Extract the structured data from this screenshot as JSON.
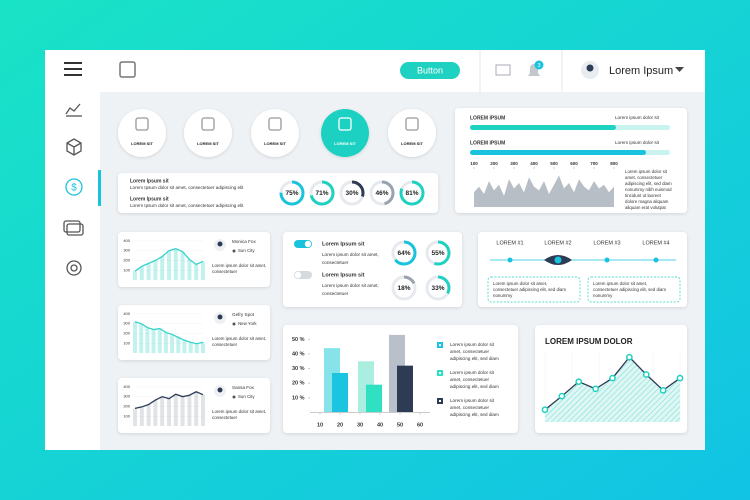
{
  "topbar": {
    "button": "Button",
    "badge": "3",
    "user": "Lorem Ipsum"
  },
  "icon_tiles": {
    "labels": [
      "LOREM SIT",
      "LOREM SIT",
      "LOREM SIT",
      "LOREM SIT",
      "LOREM SIT"
    ],
    "active": 3
  },
  "summary": {
    "lines": [
      {
        "title": "Lorem Ipsum sit",
        "text": "Lorem Ipsum dolor sit amet, consectetuer adipiscing elit"
      },
      {
        "title": "Lorem Ipsum sit",
        "text": "Lorem Ipsum dolor sit amet, consectetuer adipiscing elit"
      }
    ],
    "donuts": [
      {
        "value": 75,
        "label": "75%"
      },
      {
        "value": 71,
        "label": "71%"
      },
      {
        "value": 30,
        "label": "30%"
      },
      {
        "value": 46,
        "label": "46%"
      },
      {
        "value": 81,
        "label": "81%"
      }
    ]
  },
  "progress_panel": {
    "bars": [
      {
        "title": "LOREM IPSUM",
        "caption": "Lorem ipsum dolor sit",
        "value": 73
      },
      {
        "title": "LOREM IPSUM",
        "caption": "Lorem ipsum dolor sit",
        "value": 88
      }
    ],
    "chart": {
      "type": "area",
      "color": "#b8bec6",
      "xlim": [
        80,
        820
      ],
      "ylim": [
        0,
        100
      ],
      "xticks": [
        100,
        200,
        300,
        400,
        500,
        600,
        700,
        800
      ],
      "x": [
        100,
        125,
        150,
        175,
        200,
        225,
        250,
        275,
        300,
        325,
        350,
        375,
        400,
        425,
        450,
        475,
        500,
        525,
        550,
        575,
        600,
        625,
        650,
        675,
        700,
        725,
        750,
        775,
        800
      ],
      "values": [
        40,
        55,
        35,
        70,
        45,
        60,
        30,
        75,
        50,
        65,
        40,
        80,
        55,
        45,
        70,
        35,
        60,
        85,
        50,
        65,
        40,
        75,
        55,
        45,
        70,
        50,
        60,
        40,
        55
      ]
    },
    "text": [
      "Lorem ipsum dolor sit",
      "amet, consectetuer",
      "adipiscing elit, sed diam",
      "nonummy nibh euismod",
      "tincidunt ut laoreet",
      "dolore magna aliquam",
      "aliquam erat volutpat"
    ]
  },
  "people": [
    {
      "name": "Monica Fox",
      "location": "Sun City",
      "text": [
        "Lorem ipsum dolor sit amet,",
        "consectetuer"
      ],
      "chart": {
        "type": "area",
        "color": "#35d3c8",
        "ylim": [
          0,
          450
        ],
        "yticks": [
          100,
          200,
          300,
          400
        ],
        "values": [
          90,
          140,
          170,
          200,
          240,
          300,
          320,
          290,
          210,
          160,
          190
        ]
      }
    },
    {
      "name": "Gefry Spot",
      "location": "New York",
      "text": [
        "Lorem ipsum dolor sit amet,",
        "consectetuer"
      ],
      "chart": {
        "type": "area",
        "color": "#35d3c8",
        "ylim": [
          0,
          450
        ],
        "yticks": [
          100,
          200,
          300,
          400
        ],
        "values": [
          320,
          300,
          260,
          240,
          250,
          210,
          190,
          160,
          130,
          110,
          95,
          110
        ]
      }
    },
    {
      "name": "Sansa Fox",
      "location": "Sun City",
      "text": [
        "Lorem ipsum dolor sit amet,",
        "consectetuer"
      ],
      "chart": {
        "type": "area",
        "color": "#9aa3ad",
        "ylim": [
          0,
          450
        ],
        "yticks": [
          100,
          200,
          300,
          400
        ],
        "values": [
          180,
          195,
          220,
          265,
          300,
          280,
          325,
          300,
          315,
          350,
          320
        ]
      }
    }
  ],
  "toggles": {
    "items": [
      {
        "on": true,
        "title": "Lorem Ipsum sit",
        "text": [
          "Lorem ipsum dolor sit amet,",
          "consectetuer"
        ]
      },
      {
        "on": false,
        "title": "Lorem Ipsum sit",
        "text": [
          "Lorem ipsum dolor sit amet,",
          "consectetuer"
        ]
      }
    ],
    "donuts": [
      {
        "value": 64,
        "label": "64%"
      },
      {
        "value": 55,
        "label": "55%"
      },
      {
        "value": 18,
        "label": "18%"
      },
      {
        "value": 33,
        "label": "33%"
      }
    ]
  },
  "steps": {
    "labels": [
      "LOREM #1",
      "LOREM #2",
      "LOREM #3",
      "LOREM #4"
    ],
    "active": 1,
    "boxes": [
      [
        "Lorem ipsum dolor sit amet,",
        "consectetuer adipiscing elit, sed diam",
        "nonummy"
      ],
      [
        "Lorem ipsum dolor sit amet,",
        "consectetuer adipiscing elit, sed diam",
        "nonummy"
      ]
    ]
  },
  "bar_chart": {
    "type": "bar",
    "xlim": [
      5,
      65
    ],
    "ylim": [
      0,
      55
    ],
    "xticks": [
      10,
      20,
      30,
      40,
      50,
      60
    ],
    "yticks": [
      {
        "value": 10,
        "label": "10 %"
      },
      {
        "value": 20,
        "label": "20 %"
      },
      {
        "value": 30,
        "label": "30 %"
      },
      {
        "value": 40,
        "label": "40 %"
      },
      {
        "value": 50,
        "label": "50 %"
      }
    ],
    "series": [
      {
        "x": [
          16,
          33,
          48.5
        ],
        "values": [
          44,
          35,
          53
        ],
        "colors": [
          "#86e3ea",
          "#a9eedf",
          "#b9c0ca"
        ]
      },
      {
        "x": [
          20,
          37,
          52.5
        ],
        "values": [
          27,
          19,
          32
        ],
        "colors": [
          "#1cc4e0",
          "#2fe0c2",
          "#2d3b55"
        ]
      }
    ],
    "legend": [
      {
        "color": "#1cc4e0",
        "text": [
          "Lorem ipsum dolor sit",
          "amet, consectetuer",
          "adipiscing elit, sed diam"
        ]
      },
      {
        "color": "#2fe0c2",
        "text": [
          "Lorem ipsum dolor sit",
          "amet, consectetuer",
          "adipiscing elit, sed diam"
        ]
      },
      {
        "color": "#2d3b55",
        "text": [
          "Lorem ipsum dolor sit",
          "amet, consectetuer",
          "adipiscing elit, sed diam"
        ]
      }
    ]
  },
  "line_chart": {
    "type": "line",
    "title": "LOREM IPSUM DOLOR",
    "color": "#2d3b55",
    "ylim": [
      0,
      100
    ],
    "values": [
      17,
      36,
      56,
      46,
      61,
      90,
      66,
      44,
      61
    ]
  }
}
